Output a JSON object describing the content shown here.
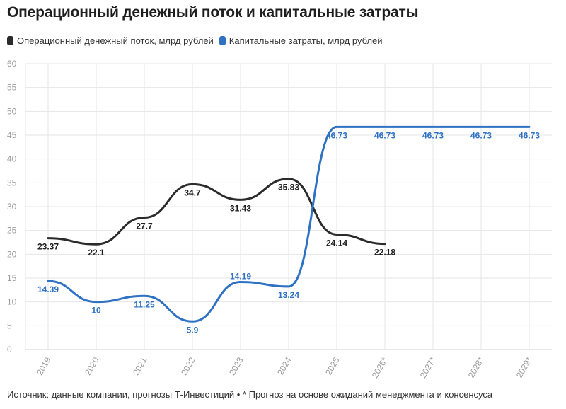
{
  "title": "Операционный денежный поток и капитальные затраты",
  "footer": "Источник: данные компании, прогнозы Т-Инвестиций • * Прогноз на основе ожиданий менеджмента и консенсуса",
  "colors": {
    "ocf": "#2b2b2b",
    "capex": "#2f72c4",
    "grid": "#e6e6e6",
    "axis": "#cfcfcf",
    "tick": "#9a9a9a"
  },
  "chart_data": {
    "type": "line",
    "title": "Операционный денежный поток и капитальные затраты",
    "categories": [
      "2019",
      "2020",
      "2021",
      "2022",
      "2023",
      "2024",
      "2025",
      "2026*",
      "2027*",
      "2028*",
      "2029*"
    ],
    "ylim": [
      0,
      60
    ],
    "yticks": [
      0,
      5,
      10,
      15,
      20,
      25,
      30,
      35,
      40,
      45,
      50,
      55,
      60
    ],
    "grid": true,
    "legend": "top-left",
    "series": [
      {
        "name": "Операционный денежный поток, млрд рублей",
        "color": "#2b2b2b",
        "values": [
          23.37,
          22.1,
          27.7,
          34.7,
          31.43,
          35.83,
          24.14,
          22.18,
          null,
          null,
          null
        ],
        "labels": [
          "23.37",
          "22.1",
          "27.7",
          "34.7",
          "31.43",
          "35.83",
          "24.14",
          "22.18",
          "",
          "",
          ""
        ]
      },
      {
        "name": "Капитальные затраты, млрд рублей",
        "color": "#2f72c4",
        "values": [
          14.39,
          10,
          11.25,
          5.9,
          14.19,
          13.24,
          46.73,
          46.73,
          46.73,
          46.73,
          46.73
        ],
        "labels": [
          "14.39",
          "10",
          "11.25",
          "5.9",
          "14.19",
          "13.24",
          "46.73",
          "46.73",
          "46.73",
          "46.73",
          "46.73"
        ]
      }
    ]
  }
}
